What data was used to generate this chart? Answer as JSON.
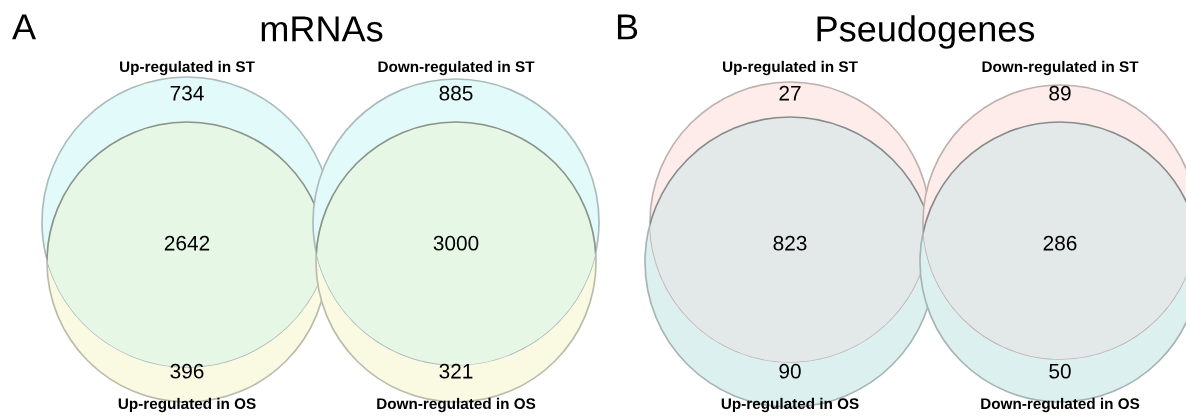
{
  "chart_data": [
    {
      "type": "other",
      "title": "mRNAs",
      "annotations": [
        "A",
        "Up-regulated in ST",
        "Up-regulated in OS"
      ],
      "categories": [
        null,
        null,
        null
      ],
      "values": [
        734,
        2642,
        396
      ],
      "data_labels": true,
      "colors": [
        "#e3fafa",
        "#e6f7e6",
        "#fafae3"
      ]
    },
    {
      "type": "other",
      "annotations": [
        "Down-regulated in ST",
        "Down-regulated in OS"
      ],
      "categories": [
        null,
        null,
        null
      ],
      "values": [
        885,
        3000,
        321
      ],
      "data_labels": true,
      "colors": [
        "#e3fafa",
        "#e6f7e6",
        "#fafae3"
      ]
    },
    {
      "type": "other",
      "title": "Pseudogenes",
      "annotations": [
        "B",
        "Up-regulated in ST",
        "Up-regulated in OS"
      ],
      "categories": [
        null,
        null,
        null
      ],
      "values": [
        27,
        823,
        90
      ],
      "data_labels": true,
      "colors": [
        "#fdece9",
        "#e3e8e8",
        "#dcf0f0"
      ]
    },
    {
      "type": "other",
      "annotations": [
        "Down-regulated in ST",
        "Down-regulated in OS"
      ],
      "categories": [
        null,
        null,
        null
      ],
      "values": [
        89,
        286,
        50
      ],
      "data_labels": true,
      "colors": [
        "#fdece9",
        "#e3e8e8",
        "#dcf0f0"
      ]
    }
  ]
}
